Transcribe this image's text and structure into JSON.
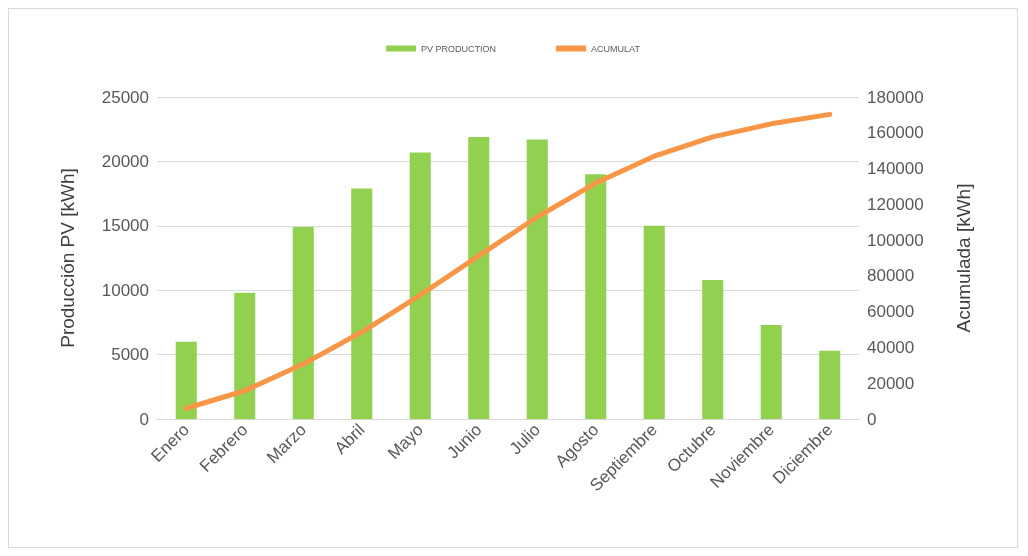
{
  "chart_data": {
    "type": "bar",
    "ylabel": "Producción PV [kWh]",
    "y2label": "Acumulada [kWh]",
    "categories": [
      "Enero",
      "Febrero",
      "Marzo",
      "Abril",
      "Mayo",
      "Junio",
      "Julio",
      "Agosto",
      "Septiembre",
      "Octubre",
      "Noviembre",
      "Diciembre"
    ],
    "series": [
      {
        "name": "PV PRODUCTION",
        "color": "#92d050",
        "values": [
          6000,
          9800,
          14900,
          17900,
          20700,
          21900,
          21700,
          19000,
          15000,
          10800,
          7300,
          5300
        ]
      },
      {
        "name": "ACUMULAT",
        "type": "line",
        "axis": "y2",
        "color": "#f79646",
        "values": [
          6000,
          15800,
          30700,
          48600,
          69300,
          91200,
          112900,
          131900,
          146900,
          157700,
          165000,
          170300
        ]
      }
    ],
    "ylim": [
      0,
      25000
    ],
    "yticks": [
      0,
      5000,
      10000,
      15000,
      20000,
      25000
    ],
    "y2lim": [
      0,
      180000
    ],
    "y2ticks": [
      0,
      20000,
      40000,
      60000,
      80000,
      100000,
      120000,
      140000,
      160000,
      180000
    ],
    "grid": "y",
    "legend": "top",
    "marker": "none",
    "line_style": "solid"
  }
}
